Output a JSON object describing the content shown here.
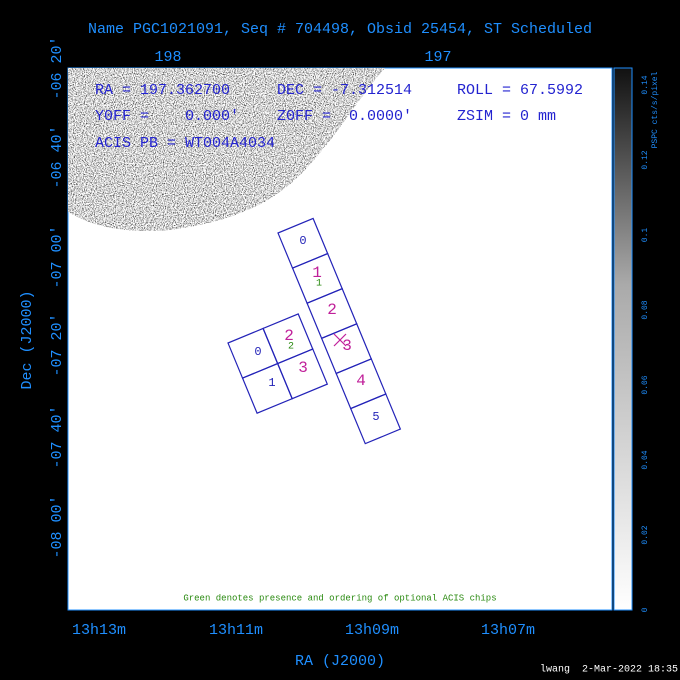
{
  "header": {
    "title": "Name PGC1021091, Seq # 704498, Obsid 25454, ST Scheduled"
  },
  "top_axis": {
    "ticks": [
      "198",
      "197"
    ]
  },
  "left_axis": {
    "title": "Dec (J2000)",
    "ticks": [
      "-06 20'",
      "-06 40'",
      "-07 00'",
      "-07 20'",
      "-07 40'",
      "-08 00'"
    ]
  },
  "bottom_axis": {
    "title": "RA (J2000)",
    "ticks": [
      "13h13m",
      "13h11m",
      "13h09m",
      "13h07m"
    ]
  },
  "colorbar": {
    "title": "PSPC cts/s/pixel",
    "ticks": [
      "0",
      "0.02",
      "0.04",
      "0.06",
      "0.08",
      "0.1",
      "0.12",
      "0.14"
    ]
  },
  "info": {
    "ra": "RA = 197.362700",
    "dec": "DEC = -7.312514",
    "roll": "ROLL = 67.5992",
    "yoff": "Y0FF =    0.000'",
    "zoff": "Z0FF =  0.0000'",
    "zsim": "ZSIM = 0 mm",
    "acis_pb": "ACIS PB = WT004A4034"
  },
  "acis_s": {
    "chips": [
      "0",
      "1",
      "2",
      "3",
      "4",
      "5"
    ],
    "optional": "1"
  },
  "acis_i": {
    "chips": [
      "0",
      "2",
      "1",
      "3"
    ],
    "optional": "2"
  },
  "note": "Green denotes presence and ordering of optional ACIS chips",
  "footer": "lwang  2-Mar-2022 18:35"
}
